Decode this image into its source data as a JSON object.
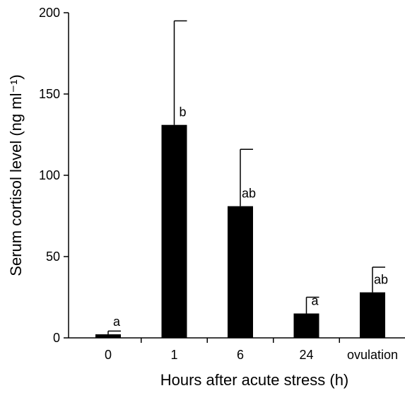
{
  "chart_data": {
    "type": "bar",
    "x_label": "Hours after acute stress (h)",
    "y_label": "Serum cortisol level (ng ml⁻¹)",
    "categories": [
      "0",
      "1",
      "6",
      "24",
      "ovulation"
    ],
    "values": [
      2.2,
      131,
      81,
      15,
      28
    ],
    "errors": [
      2,
      64,
      35,
      10,
      15.5
    ],
    "letters": [
      "a",
      "b",
      "ab",
      "a",
      "ab"
    ],
    "color": "#000000",
    "ylim": [
      0,
      200
    ],
    "yticks": [
      0,
      50,
      100,
      150,
      200
    ]
  }
}
